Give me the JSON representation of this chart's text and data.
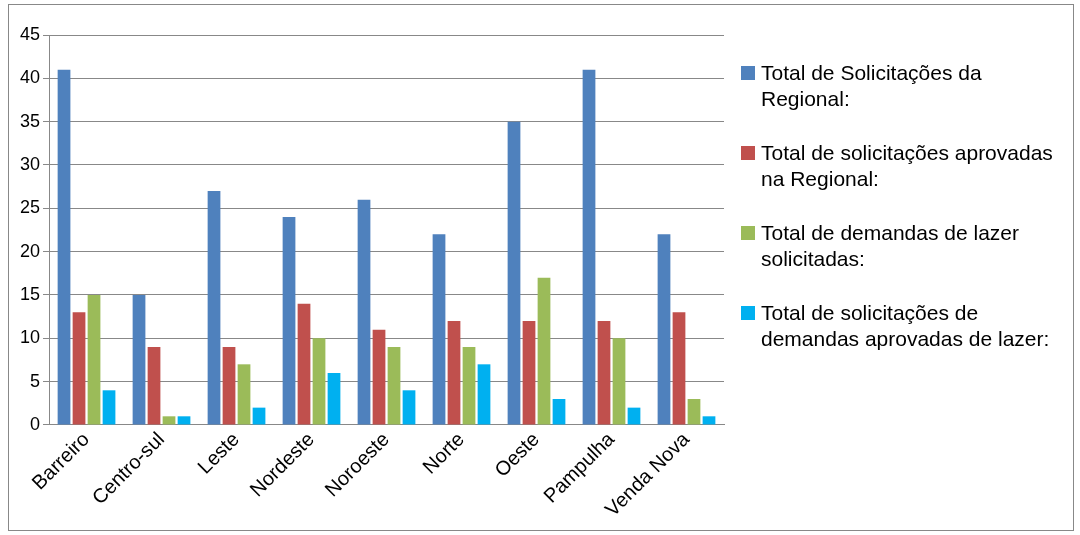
{
  "chart_data": {
    "type": "bar",
    "categories": [
      "Barreiro",
      "Centro-sul",
      "Leste",
      "Nordeste",
      "Noroeste",
      "Norte",
      "Oeste",
      "Pampulha",
      "Venda Nova"
    ],
    "series": [
      {
        "name": "Total de Solicitações da Regional:",
        "color": "#4f81bd",
        "values": [
          41,
          15,
          27,
          24,
          26,
          22,
          35,
          41,
          22
        ]
      },
      {
        "name": "Total de solicitações aprovadas na Regional:",
        "color": "#c0504d",
        "values": [
          13,
          9,
          9,
          14,
          11,
          12,
          12,
          12,
          13
        ]
      },
      {
        "name": "Total de demandas de lazer solicitadas:",
        "color": "#9bbb59",
        "values": [
          15,
          1,
          7,
          10,
          9,
          9,
          17,
          10,
          3
        ]
      },
      {
        "name": "Total de solicitações de demandas aprovadas de lazer:",
        "color": "#00b0f0",
        "values": [
          4,
          1,
          2,
          6,
          4,
          7,
          3,
          2,
          1
        ]
      }
    ],
    "ylim": [
      0,
      45
    ],
    "yticks": [
      0,
      5,
      10,
      15,
      20,
      25,
      30,
      35,
      40,
      45
    ],
    "grid": "y",
    "legend": "right"
  }
}
